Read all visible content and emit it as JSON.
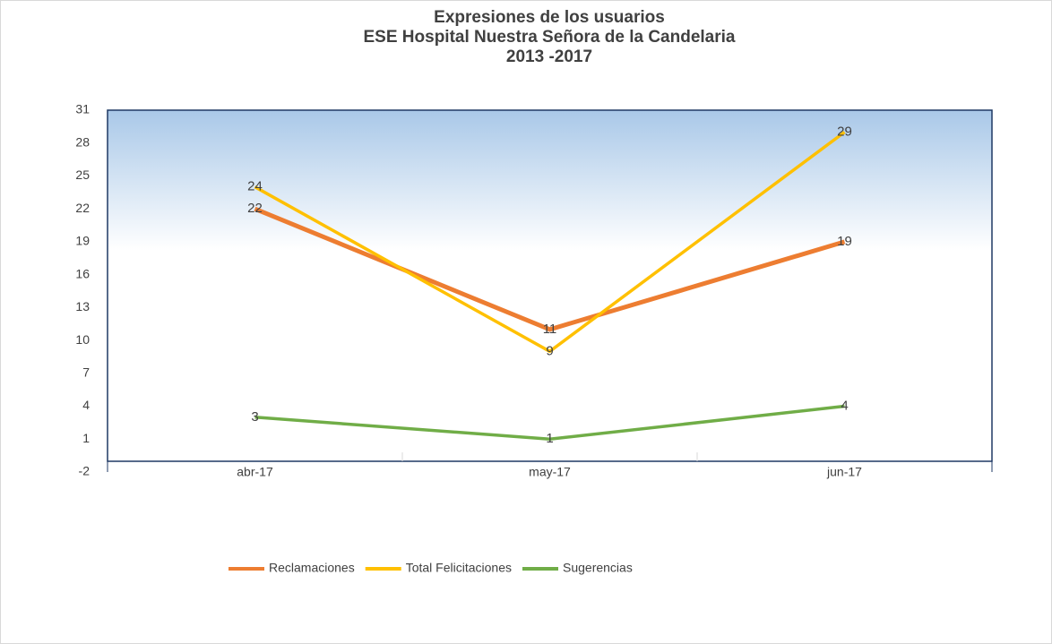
{
  "chart_data": {
    "type": "line",
    "title": [
      "Expresiones de los usuarios",
      "ESE Hospital Nuestra Señora de la Candelaria",
      "2013 -2017"
    ],
    "categories": [
      "abr-17",
      "may-17",
      "jun-17"
    ],
    "series": [
      {
        "name": "Reclamaciones",
        "color": "#ED7D31",
        "values": [
          22,
          11,
          19
        ]
      },
      {
        "name": "Total Felicitaciones",
        "color": "#FFC000",
        "values": [
          24,
          9,
          29
        ]
      },
      {
        "name": "Sugerencias",
        "color": "#70AD47",
        "values": [
          3,
          1,
          4
        ]
      }
    ],
    "ylim": [
      -2,
      31
    ],
    "yticks": [
      -2,
      1,
      4,
      7,
      10,
      13,
      16,
      19,
      22,
      25,
      28,
      31
    ],
    "legend": "bottom"
  }
}
